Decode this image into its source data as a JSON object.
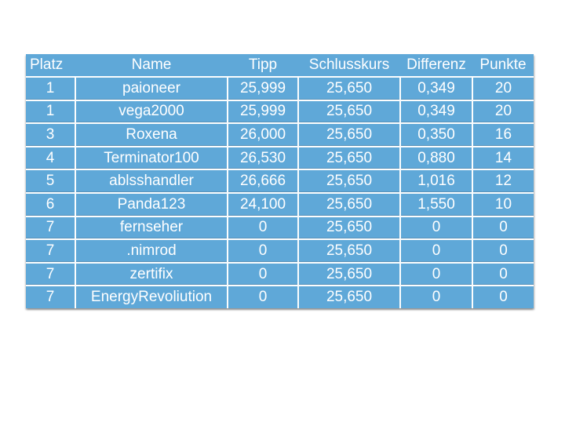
{
  "colors": {
    "page_background": "#ffffff",
    "table_blue": "#5fa8d8",
    "grid_white": "#fbfdfe",
    "text_white": "#ffffff"
  },
  "chart_data": {
    "type": "table",
    "columns": [
      "Platz",
      "Name",
      "Tipp",
      "Schlusskurs",
      "Differenz",
      "Punkte"
    ],
    "rows": [
      [
        "1",
        "paioneer",
        "25,999",
        "25,650",
        "0,349",
        "20"
      ],
      [
        "1",
        "vega2000",
        "25,999",
        "25,650",
        "0,349",
        "20"
      ],
      [
        "3",
        "Roxena",
        "26,000",
        "25,650",
        "0,350",
        "16"
      ],
      [
        "4",
        "Terminator100",
        "26,530",
        "25,650",
        "0,880",
        "14"
      ],
      [
        "5",
        "ablsshandler",
        "26,666",
        "25,650",
        "1,016",
        "12"
      ],
      [
        "6",
        "Panda123",
        "24,100",
        "25,650",
        "1,550",
        "10"
      ],
      [
        "7",
        "fernseher",
        "0",
        "25,650",
        "0",
        "0"
      ],
      [
        "7",
        ".nimrod",
        "0",
        "25,650",
        "0",
        "0"
      ],
      [
        "7",
        "zertifix",
        "0",
        "25,650",
        "0",
        "0"
      ],
      [
        "7",
        "EnergyRevoliution",
        "0",
        "25,650",
        "0",
        "0"
      ]
    ],
    "layout": {
      "header_row": true,
      "grid": "white lines between data cells, none in header",
      "alignment": "all cells centered except header Platz left-aligned"
    }
  }
}
